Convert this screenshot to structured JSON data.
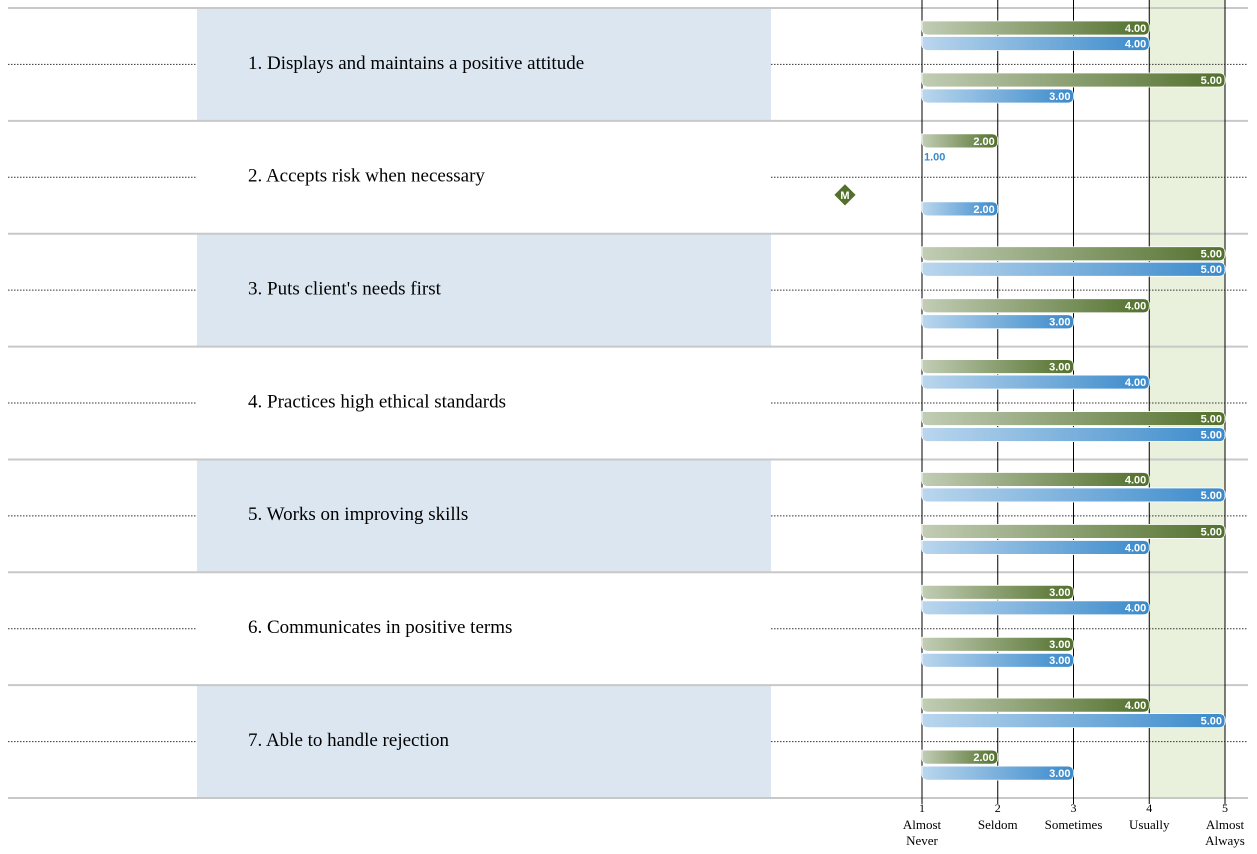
{
  "chart_data": {
    "type": "bar",
    "categories": [
      "1. Displays and maintains a positive attitude",
      "2. Accepts risk when necessary",
      "3. Puts client's needs first",
      "4. Practices high ethical standards",
      "5. Works on improving skills",
      "6. Communicates in positive terms",
      "7. Able to handle rejection"
    ],
    "series": [
      {
        "color": "#52702c",
        "values": [
          4,
          2,
          5,
          3,
          4,
          3,
          4
        ],
        "value_labels": [
          "4.00",
          "2.00",
          "5.00",
          "3.00",
          "4.00",
          "3.00",
          "4.00"
        ]
      },
      {
        "color": "#3a8acb",
        "values": [
          4,
          1,
          5,
          4,
          5,
          4,
          5
        ],
        "value_labels": [
          "4.00",
          "1.00",
          "5.00",
          "4.00",
          "5.00",
          "4.00",
          "5.00"
        ]
      },
      {
        "color": "#52702c",
        "values": [
          5,
          null,
          4,
          5,
          5,
          3,
          2
        ],
        "value_labels": [
          "5.00",
          null,
          "4.00",
          "5.00",
          "5.00",
          "3.00",
          "2.00"
        ]
      },
      {
        "color": "#3a8acb",
        "values": [
          3,
          2,
          3,
          5,
          4,
          3,
          3
        ],
        "value_labels": [
          "3.00",
          "2.00",
          "3.00",
          "5.00",
          "4.00",
          "3.00",
          "3.00"
        ]
      }
    ],
    "missing_marker_label": "M",
    "xlim": [
      1,
      5
    ],
    "xticks": [
      1,
      2,
      3,
      4,
      5
    ],
    "xtick_descriptions": [
      "Almost Never",
      "Seldom",
      "Sometimes",
      "Usually",
      "Almost Always"
    ],
    "highlight_range": [
      4,
      5
    ],
    "highlight_color": "#e9f1dc"
  }
}
